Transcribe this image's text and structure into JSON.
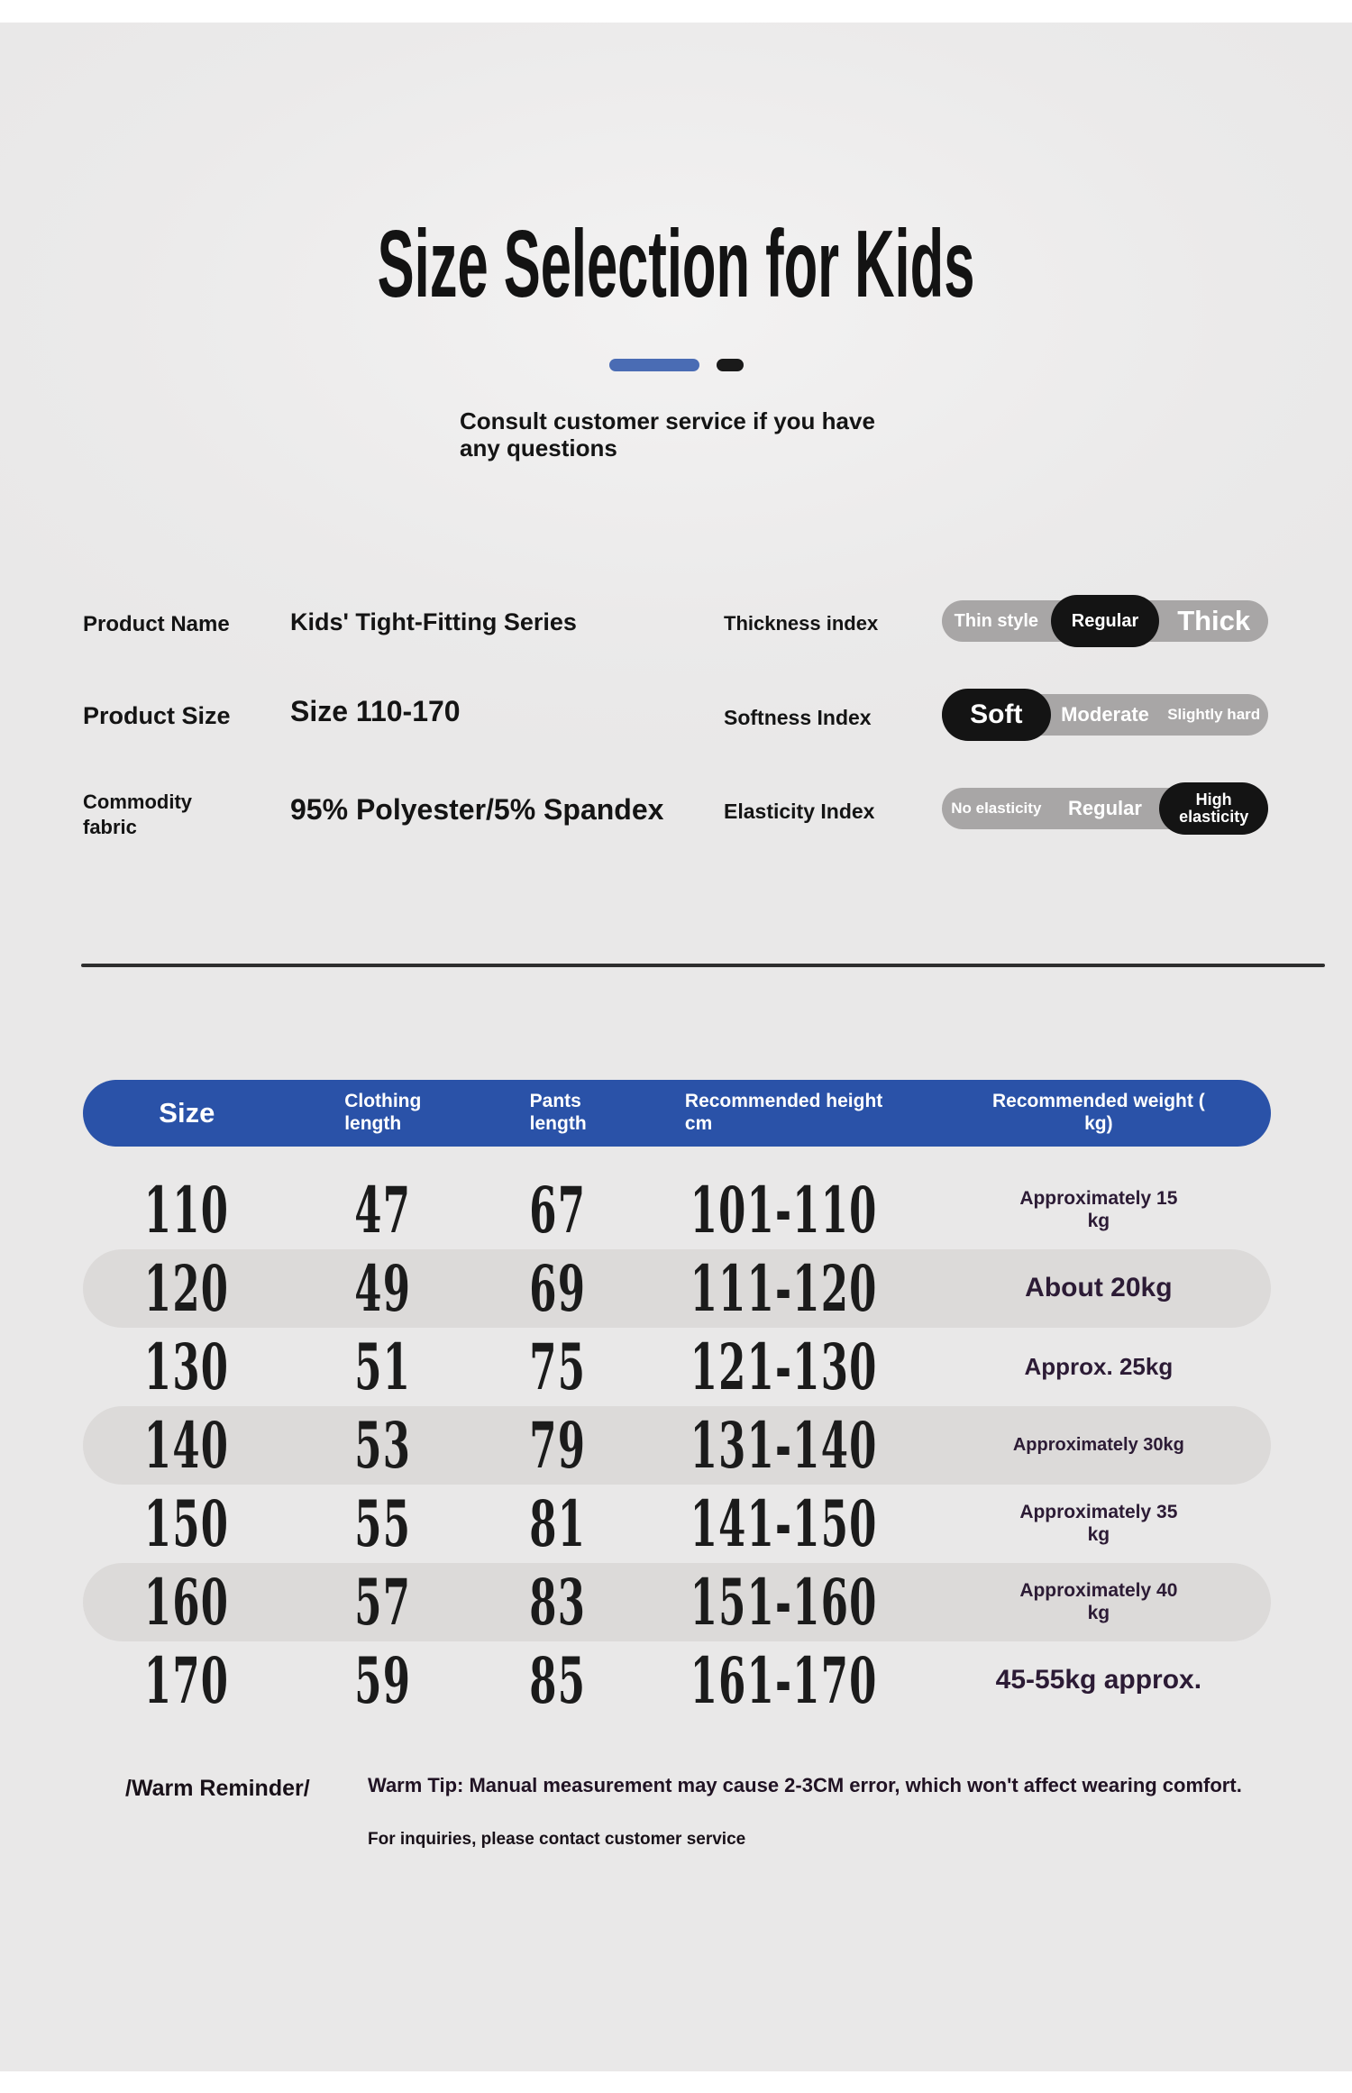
{
  "page": {
    "title": "Size Selection for Kids",
    "subtitle": "Consult customer service if you have\nany questions"
  },
  "product": {
    "fields": [
      {
        "label": "Product Name",
        "value": "Kids' Tight-Fitting Series"
      },
      {
        "label": "Product Size",
        "value": "Size 110-170"
      },
      {
        "label": "Commodity\nfabric",
        "value": "95% Polyester/5% Spandex"
      }
    ],
    "indexes": [
      {
        "label": "Thickness index",
        "options": [
          "Thin style",
          "Regular",
          "Thick"
        ],
        "selected": "Regular"
      },
      {
        "label": "Softness Index",
        "options": [
          "Soft",
          "Moderate",
          "Slightly hard"
        ],
        "selected": "Soft"
      },
      {
        "label": "Elasticity Index",
        "options": [
          "No elasticity",
          "Regular",
          "High\nelasticity"
        ],
        "selected": "High elasticity"
      }
    ]
  },
  "size_table": {
    "headers": [
      "Size",
      "Clothing\nlength",
      "Pants\nlength",
      "Recommended height\ncm",
      "Recommended weight (\nkg)"
    ],
    "rows": [
      [
        "110",
        "47",
        "67",
        "101-110",
        "Approximately 15\nkg"
      ],
      [
        "120",
        "49",
        "69",
        "111-120",
        "About 20kg"
      ],
      [
        "130",
        "51",
        "75",
        "121-130",
        "Approx. 25kg"
      ],
      [
        "140",
        "53",
        "79",
        "131-140",
        "Approximately 30kg"
      ],
      [
        "150",
        "55",
        "81",
        "141-150",
        "Approximately 35\nkg"
      ],
      [
        "160",
        "57",
        "83",
        "151-160",
        "Approximately 40\nkg"
      ],
      [
        "170",
        "59",
        "85",
        "161-170",
        "45-55kg approx."
      ]
    ]
  },
  "reminder": {
    "label": "/Warm Reminder/",
    "tip": "Warm Tip: Manual measurement may cause 2-3CM error, which won't affect wearing comfort.",
    "note": "For inquiries, please contact customer service"
  },
  "colors": {
    "header_blue": "#2a52a8",
    "accent_blue": "#4a6cb4",
    "selected_black": "#141414",
    "track_gray": "#a8a6a6",
    "alt_row_gray": "#dcdad9",
    "weight_text": "#2c1b35",
    "panel_bg": "#ebeaea"
  }
}
